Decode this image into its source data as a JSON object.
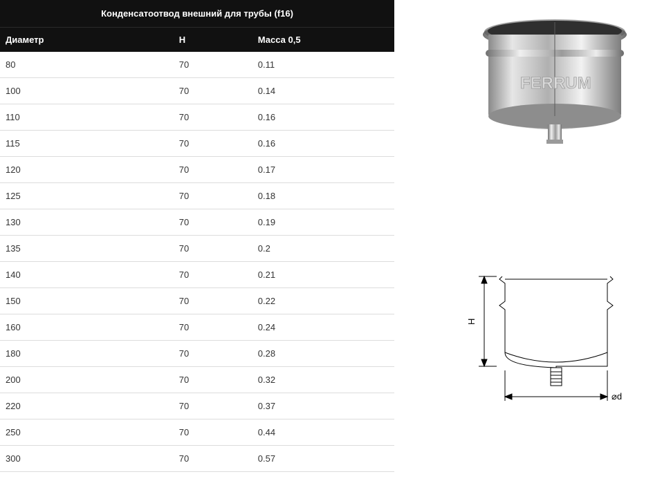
{
  "table": {
    "title": "Конденсатоотвод внешний для трубы (f16)",
    "columns": [
      "Диаметр",
      "H",
      "Масса 0,5"
    ],
    "rows": [
      [
        "80",
        "70",
        "0.11"
      ],
      [
        "100",
        "70",
        "0.14"
      ],
      [
        "110",
        "70",
        "0.16"
      ],
      [
        "115",
        "70",
        "0.16"
      ],
      [
        "120",
        "70",
        "0.17"
      ],
      [
        "125",
        "70",
        "0.18"
      ],
      [
        "130",
        "70",
        "0.19"
      ],
      [
        "135",
        "70",
        "0.2"
      ],
      [
        "140",
        "70",
        "0.21"
      ],
      [
        "150",
        "70",
        "0.22"
      ],
      [
        "160",
        "70",
        "0.24"
      ],
      [
        "180",
        "70",
        "0.28"
      ],
      [
        "200",
        "70",
        "0.32"
      ],
      [
        "220",
        "70",
        "0.37"
      ],
      [
        "250",
        "70",
        "0.44"
      ],
      [
        "300",
        "70",
        "0.57"
      ]
    ],
    "header_bg": "#111111",
    "header_text": "#ffffff",
    "row_bg": "#ffffff",
    "row_text": "#333333",
    "border_color": "#dcdcdc",
    "font_size": 13,
    "col_widths_pct": [
      44,
      20,
      36
    ]
  },
  "product_photo": {
    "brand_text": "FERRUM",
    "body_gradient": [
      "#e8e8e8",
      "#a8a8a8",
      "#f5f5f5",
      "#808080"
    ],
    "rim_color": "#c0c0c0",
    "shadow_color": "#606060"
  },
  "diagram": {
    "stroke": "#000000",
    "stroke_width": 1,
    "label_H": "H",
    "label_d": "⌀d",
    "font_size": 12
  }
}
